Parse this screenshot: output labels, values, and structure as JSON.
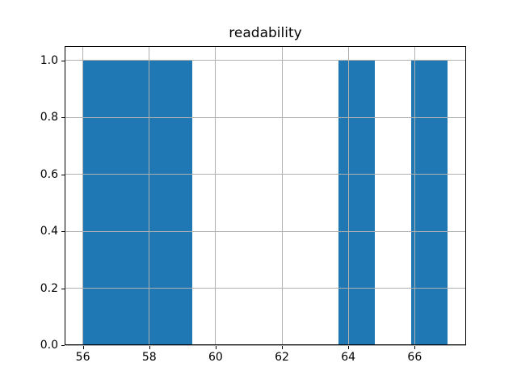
{
  "chart_data": {
    "type": "bar",
    "subtype": "histogram",
    "title": "readability",
    "xlabel": "",
    "ylabel": "",
    "bin_edges": [
      56.0,
      57.1,
      58.2,
      59.3,
      60.4,
      61.5,
      62.6,
      63.7,
      64.8,
      65.9,
      67.0
    ],
    "counts": [
      1,
      1,
      1,
      0,
      0,
      0,
      0,
      1,
      0,
      1
    ],
    "xlim": [
      55.45,
      67.55
    ],
    "ylim": [
      0,
      1.05
    ],
    "xticks": [
      {
        "value": 56,
        "label": "56"
      },
      {
        "value": 58,
        "label": "58"
      },
      {
        "value": 60,
        "label": "60"
      },
      {
        "value": 62,
        "label": "62"
      },
      {
        "value": 64,
        "label": "64"
      },
      {
        "value": 66,
        "label": "66"
      }
    ],
    "yticks": [
      {
        "value": 0.0,
        "label": "0.0"
      },
      {
        "value": 0.2,
        "label": "0.2"
      },
      {
        "value": 0.4,
        "label": "0.4"
      },
      {
        "value": 0.6,
        "label": "0.6"
      },
      {
        "value": 0.8,
        "label": "0.8"
      },
      {
        "value": 1.0,
        "label": "1.0"
      }
    ],
    "grid": true,
    "grid_on_top": true,
    "legend": null,
    "colors": {
      "bar": "#1f77b4",
      "grid": "#b0b0b0",
      "spine": "#000000",
      "text": "#000000",
      "background": "#ffffff"
    }
  }
}
